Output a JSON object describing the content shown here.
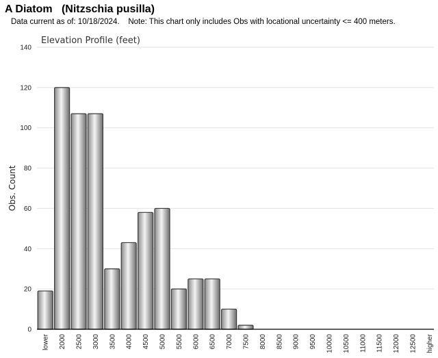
{
  "header": {
    "title": "A Diatom   (Nitzschia pusilla)",
    "subtitle": "Data current as of: 10/18/2024.    Note: This chart only includes Obs with locational uncertainty <= 400 meters."
  },
  "chart_data": {
    "type": "bar",
    "title": "Elevation Profile (feet)",
    "xlabel": "",
    "ylabel": "Obs. Count",
    "ylim": [
      0,
      140
    ],
    "yticks": [
      0,
      20,
      40,
      60,
      80,
      100,
      120,
      140
    ],
    "grid": true,
    "categories": [
      "lower",
      "2000",
      "2500",
      "3000",
      "3500",
      "4000",
      "4500",
      "5000",
      "5500",
      "6000",
      "6500",
      "7000",
      "7500",
      "8000",
      "8500",
      "9000",
      "9500",
      "10000",
      "10500",
      "11000",
      "11500",
      "12000",
      "12500",
      "higher"
    ],
    "values": [
      19,
      120,
      107,
      107,
      30,
      43,
      58,
      60,
      20,
      25,
      25,
      10,
      2,
      0,
      0,
      0,
      0,
      0,
      0,
      0,
      0,
      0,
      0,
      0
    ],
    "colors": {
      "bar_light": "#f2f2f2",
      "bar_dark": "#7a7a7a",
      "bar_stroke": "#3a3a3a",
      "grid": "#e2e2e2",
      "axis": "#000000"
    }
  }
}
